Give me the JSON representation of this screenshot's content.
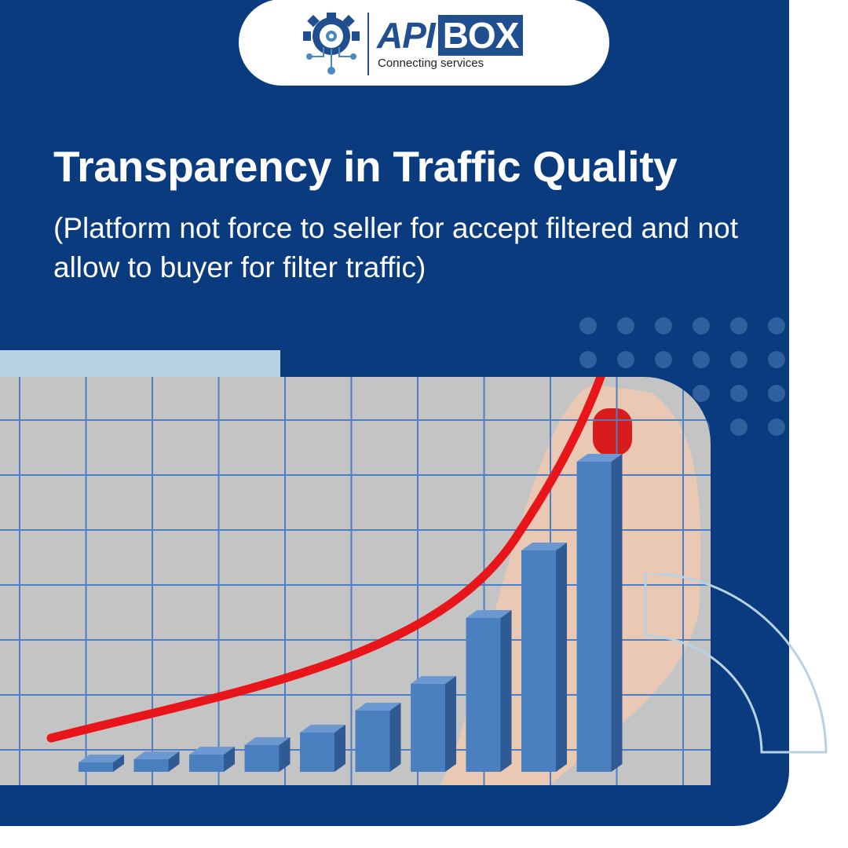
{
  "brand": {
    "name_left": "API",
    "name_right": "BOX",
    "tagline": "Connecting services",
    "icon": "gear-circuit-icon"
  },
  "headline": {
    "title": "Transparency in Traffic Quality",
    "subtitle": "(Platform not force to seller for accept filtered and not allow to buyer for filter traffic)"
  },
  "colors": {
    "background": "#0b3b7f",
    "accent": "#b7d3e3",
    "bar": "#4a7fc0",
    "trend": "#e8161b"
  },
  "illustration": {
    "description_icon": "growth-bar-chart-photo"
  }
}
